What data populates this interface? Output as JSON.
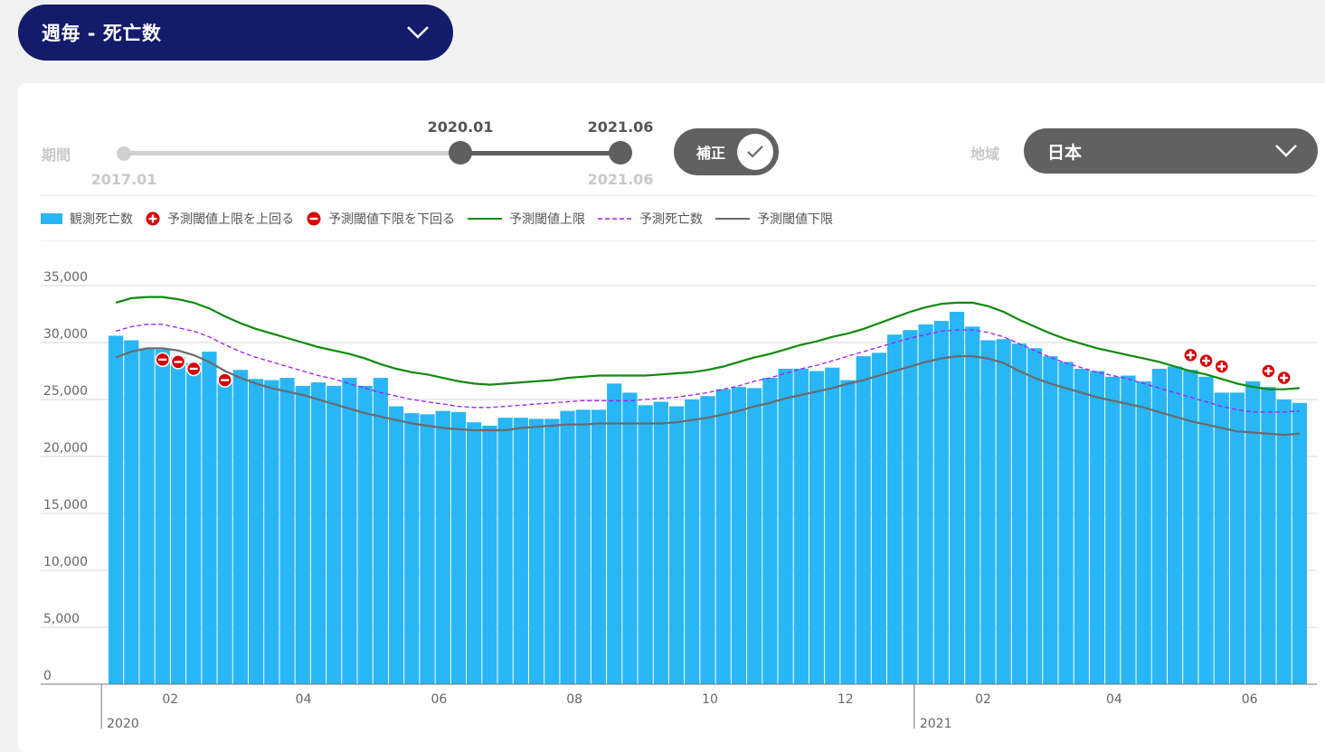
{
  "header": {
    "metric_label": "週毎 - 死亡数"
  },
  "controls": {
    "period_label": "期間",
    "slider_min": "2017.01",
    "slider_start": "2020.01",
    "slider_end": "2021.06",
    "slider_end_sub": "2021.06",
    "adjust_label": "補正",
    "adjust_on": true,
    "region_label": "地域",
    "region_value": "日本"
  },
  "legend": [
    {
      "label": "観測死亡数",
      "icon": "bar-swatch",
      "color": "#29b6f6"
    },
    {
      "label": "予測閾値上限を上回る",
      "icon": "plus-circle-icon",
      "color": "#d50000"
    },
    {
      "label": "予測閾値下限を下回る",
      "icon": "minus-circle-icon",
      "color": "#d50000"
    },
    {
      "label": "予測閾値上限",
      "icon": "solid-line",
      "color": "#0d8a0d"
    },
    {
      "label": "予測死亡数",
      "icon": "dashed-line",
      "color": "#a21cf0"
    },
    {
      "label": "予測閾値下限",
      "icon": "solid-line",
      "color": "#6a6a6a"
    }
  ],
  "chart_data": {
    "type": "bar",
    "x_start": "2020-01-04",
    "x_end": "2021-06-27",
    "ylim": [
      0,
      35000
    ],
    "yticks": [
      0,
      5000,
      10000,
      15000,
      20000,
      25000,
      30000,
      35000
    ],
    "ytick_labels": [
      "0",
      "5,000",
      "10,000",
      "15,000",
      "20,000",
      "25,000",
      "30,000",
      "35,000"
    ],
    "xticks": [
      {
        "date": "2020-02-01",
        "label": "02"
      },
      {
        "date": "2020-04-01",
        "label": "04"
      },
      {
        "date": "2020-06-01",
        "label": "06"
      },
      {
        "date": "2020-08-01",
        "label": "08"
      },
      {
        "date": "2020-10-01",
        "label": "10"
      },
      {
        "date": "2020-12-01",
        "label": "12"
      },
      {
        "date": "2021-02-01",
        "label": "02"
      },
      {
        "date": "2021-04-01",
        "label": "04"
      },
      {
        "date": "2021-06-01",
        "label": "06"
      }
    ],
    "year_markers": [
      {
        "date": "2020-01-01",
        "label": "2020"
      },
      {
        "date": "2021-01-01",
        "label": "2021"
      }
    ],
    "grid": true,
    "legend_position": "top",
    "series": [
      {
        "name": "観測死亡数",
        "type": "bar",
        "color": "#29b6f6",
        "values": [
          30600,
          30200,
          29500,
          29400,
          28700,
          28200,
          29200,
          27000,
          27600,
          26800,
          26700,
          26900,
          26200,
          26500,
          26200,
          26900,
          26200,
          26900,
          24400,
          23800,
          23700,
          24000,
          23900,
          23000,
          22700,
          23400,
          23400,
          23300,
          23300,
          24000,
          24100,
          24100,
          26400,
          25600,
          24500,
          24800,
          24400,
          25000,
          25300,
          25900,
          26100,
          26000,
          26900,
          27700,
          27700,
          27500,
          27800,
          26700,
          28800,
          29100,
          30700,
          31100,
          31600,
          31900,
          32700,
          31400,
          30200,
          30300,
          29900,
          29500,
          28800,
          28300,
          27700,
          27500,
          27000,
          27100,
          26600,
          27700,
          27900,
          27600,
          27000,
          25600,
          25600,
          26600,
          26100,
          25000,
          24700
        ]
      },
      {
        "name": "予測閾値上限",
        "type": "line",
        "color": "#0d8a0d",
        "values": [
          33500,
          33900,
          34000,
          34000,
          33800,
          33500,
          33000,
          32300,
          31700,
          31200,
          30800,
          30400,
          30000,
          29600,
          29300,
          29000,
          28600,
          28100,
          27700,
          27400,
          27200,
          26900,
          26600,
          26400,
          26300,
          26400,
          26500,
          26600,
          26700,
          26900,
          27000,
          27100,
          27100,
          27100,
          27100,
          27200,
          27300,
          27400,
          27600,
          27900,
          28300,
          28700,
          29000,
          29400,
          29800,
          30100,
          30500,
          30800,
          31200,
          31700,
          32200,
          32700,
          33100,
          33400,
          33500,
          33500,
          33200,
          32700,
          32000,
          31400,
          30800,
          30300,
          29900,
          29500,
          29200,
          28900,
          28600,
          28300,
          27900,
          27500,
          27200,
          26800,
          26400,
          26100,
          25900,
          25900,
          26000
        ]
      },
      {
        "name": "予測死亡数",
        "type": "line",
        "dashed": true,
        "color": "#a21cf0",
        "values": [
          31000,
          31400,
          31600,
          31600,
          31300,
          31000,
          30500,
          29800,
          29200,
          28700,
          28300,
          27900,
          27500,
          27100,
          26800,
          26400,
          26000,
          25600,
          25300,
          25000,
          24800,
          24600,
          24400,
          24300,
          24300,
          24400,
          24500,
          24600,
          24700,
          24800,
          24900,
          24900,
          24900,
          24900,
          25000,
          25100,
          25200,
          25400,
          25600,
          25900,
          26200,
          26600,
          26900,
          27300,
          27700,
          28000,
          28400,
          28800,
          29200,
          29600,
          30000,
          30400,
          30700,
          31000,
          31100,
          31100,
          30900,
          30500,
          29900,
          29300,
          28700,
          28200,
          27800,
          27400,
          27100,
          26800,
          26400,
          26000,
          25600,
          25200,
          24800,
          24400,
          24100,
          23900,
          23900,
          23900,
          24000
        ]
      },
      {
        "name": "予測閾値下限",
        "type": "line",
        "color": "#6a6a6a",
        "values": [
          28700,
          29200,
          29500,
          29500,
          29300,
          28900,
          28300,
          27500,
          26900,
          26400,
          26000,
          25700,
          25400,
          25000,
          24600,
          24200,
          23800,
          23500,
          23200,
          22900,
          22700,
          22500,
          22400,
          22300,
          22300,
          22300,
          22500,
          22600,
          22700,
          22800,
          22800,
          22900,
          22900,
          22900,
          22900,
          22900,
          23000,
          23200,
          23400,
          23700,
          24000,
          24400,
          24700,
          25100,
          25400,
          25700,
          26000,
          26400,
          26700,
          27100,
          27500,
          27900,
          28300,
          28600,
          28800,
          28800,
          28600,
          28200,
          27500,
          26900,
          26400,
          26000,
          25600,
          25200,
          24900,
          24600,
          24300,
          23900,
          23500,
          23100,
          22800,
          22500,
          22200,
          22100,
          22000,
          21900,
          22000
        ]
      }
    ],
    "markers_above": [
      {
        "week": 69,
        "value": 28900
      },
      {
        "week": 70,
        "value": 28400
      },
      {
        "week": 71,
        "value": 27900
      },
      {
        "week": 74,
        "value": 27500
      },
      {
        "week": 75,
        "value": 26900
      }
    ],
    "markers_below": [
      {
        "week": 3,
        "value": 28500
      },
      {
        "week": 4,
        "value": 28300
      },
      {
        "week": 5,
        "value": 27700
      },
      {
        "week": 7,
        "value": 26700
      }
    ]
  }
}
